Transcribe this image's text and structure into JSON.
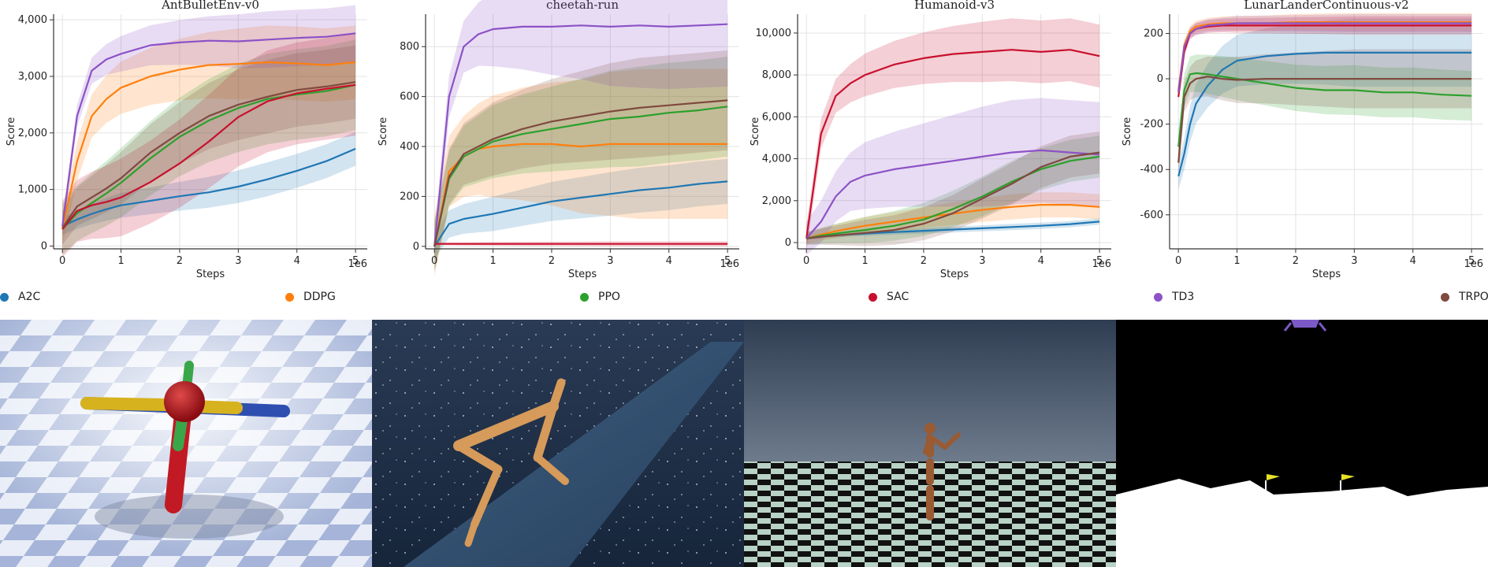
{
  "legend": [
    {
      "name": "A2C",
      "color": "#1f77b4"
    },
    {
      "name": "DDPG",
      "color": "#ff7f0e"
    },
    {
      "name": "PPO",
      "color": "#2ca02c"
    },
    {
      "name": "SAC",
      "color": "#c8102e"
    },
    {
      "name": "TD3",
      "color": "#8c52c6"
    },
    {
      "name": "TRPO",
      "color": "#7f4a3f"
    }
  ],
  "chart_data": [
    {
      "type": "line",
      "title": "AntBulletEnv-v0",
      "xlabel": "Steps",
      "ylabel": "Score",
      "x_multiplier": "1e6",
      "xlim": [
        -0.15,
        5.2
      ],
      "ylim": [
        -50,
        4100
      ],
      "xticks": [
        0,
        1,
        2,
        3,
        4,
        5
      ],
      "xtick_labels": [
        "0",
        "1",
        "2",
        "3",
        "4",
        "5"
      ],
      "yticks": [
        0,
        1000,
        2000,
        3000,
        4000
      ],
      "ytick_labels": [
        "0",
        "1,000",
        "2,000",
        "3,000",
        "4,000"
      ],
      "grid": true,
      "x": [
        0,
        0.25,
        0.5,
        0.75,
        1,
        1.5,
        2,
        2.5,
        3,
        3.5,
        4,
        4.5,
        5
      ],
      "series": [
        {
          "name": "A2C",
          "values": [
            350,
            470,
            570,
            650,
            720,
            800,
            880,
            950,
            1050,
            1180,
            1330,
            1500,
            1720
          ],
          "band": [
            150,
            300
          ]
        },
        {
          "name": "DDPG",
          "values": [
            300,
            1500,
            2300,
            2600,
            2800,
            3000,
            3120,
            3200,
            3220,
            3250,
            3230,
            3200,
            3250
          ],
          "band": [
            300,
            650
          ]
        },
        {
          "name": "PPO",
          "values": [
            300,
            580,
            760,
            930,
            1120,
            1550,
            1930,
            2220,
            2440,
            2600,
            2680,
            2740,
            2850
          ],
          "band": [
            450,
            800
          ]
        },
        {
          "name": "SAC",
          "values": [
            300,
            620,
            720,
            780,
            860,
            1130,
            1460,
            1850,
            2280,
            2560,
            2700,
            2780,
            2850
          ],
          "band": [
            500,
            900
          ]
        },
        {
          "name": "TD3",
          "values": [
            350,
            2300,
            3100,
            3300,
            3400,
            3550,
            3600,
            3630,
            3620,
            3650,
            3680,
            3700,
            3760
          ],
          "band": [
            150,
            500
          ]
        },
        {
          "name": "TRPO",
          "values": [
            320,
            700,
            860,
            1020,
            1200,
            1650,
            2000,
            2300,
            2500,
            2640,
            2760,
            2820,
            2900
          ],
          "band": [
            300,
            650
          ]
        }
      ]
    },
    {
      "type": "line",
      "title": "cheetah-run",
      "xlabel": "Steps",
      "ylabel": "Score",
      "x_multiplier": "1e6",
      "xlim": [
        -0.15,
        5.2
      ],
      "ylim": [
        -10,
        930
      ],
      "xticks": [
        0,
        1,
        2,
        3,
        4,
        5
      ],
      "xtick_labels": [
        "0",
        "1",
        "2",
        "3",
        "4",
        "5"
      ],
      "yticks": [
        0,
        200,
        400,
        600,
        800
      ],
      "ytick_labels": [
        "0",
        "200",
        "400",
        "600",
        "800"
      ],
      "grid": true,
      "x": [
        0,
        0.25,
        0.5,
        0.75,
        1,
        1.5,
        2,
        2.5,
        3,
        3.5,
        4,
        4.5,
        5
      ],
      "series": [
        {
          "name": "A2C",
          "values": [
            0,
            90,
            110,
            120,
            130,
            155,
            180,
            195,
            210,
            225,
            235,
            250,
            260
          ],
          "band": [
            50,
            90
          ]
        },
        {
          "name": "DDPG",
          "values": [
            0,
            300,
            360,
            390,
            400,
            410,
            410,
            400,
            410,
            410,
            410,
            410,
            410
          ],
          "band": [
            120,
            300
          ]
        },
        {
          "name": "PPO",
          "values": [
            0,
            270,
            360,
            390,
            420,
            450,
            470,
            490,
            510,
            520,
            535,
            545,
            560
          ],
          "band": [
            100,
            200
          ]
        },
        {
          "name": "SAC",
          "values": [
            10,
            10,
            10,
            10,
            10,
            10,
            10,
            10,
            10,
            10,
            10,
            10,
            10
          ],
          "band": [
            5,
            10
          ]
        },
        {
          "name": "TD3",
          "values": [
            0,
            600,
            800,
            850,
            870,
            880,
            880,
            885,
            880,
            885,
            880,
            885,
            890
          ],
          "band": [
            60,
            250
          ]
        },
        {
          "name": "TRPO",
          "values": [
            0,
            280,
            370,
            400,
            430,
            470,
            500,
            520,
            540,
            555,
            565,
            575,
            585
          ],
          "band": [
            100,
            200
          ]
        }
      ]
    },
    {
      "type": "line",
      "title": "Humanoid-v3",
      "xlabel": "Steps",
      "ylabel": "Score",
      "x_multiplier": "1e6",
      "xlim": [
        -0.15,
        5.2
      ],
      "ylim": [
        -300,
        10900
      ],
      "xticks": [
        0,
        1,
        2,
        3,
        4,
        5
      ],
      "xtick_labels": [
        "0",
        "1",
        "2",
        "3",
        "4",
        "5"
      ],
      "yticks": [
        0,
        2000,
        4000,
        6000,
        8000,
        10000
      ],
      "ytick_labels": [
        "0",
        "2,000",
        "4,000",
        "6,000",
        "8,000",
        "10,000"
      ],
      "grid": true,
      "x": [
        0,
        0.25,
        0.5,
        0.75,
        1,
        1.5,
        2,
        2.5,
        3,
        3.5,
        4,
        4.5,
        5
      ],
      "series": [
        {
          "name": "A2C",
          "values": [
            200,
            280,
            340,
            390,
            430,
            500,
            560,
            620,
            680,
            740,
            800,
            880,
            1000
          ],
          "band": [
            80,
            150
          ]
        },
        {
          "name": "DDPG",
          "values": [
            200,
            380,
            540,
            680,
            800,
            1000,
            1200,
            1380,
            1560,
            1700,
            1800,
            1800,
            1700
          ],
          "band": [
            250,
            600
          ]
        },
        {
          "name": "PPO",
          "values": [
            200,
            330,
            430,
            520,
            600,
            800,
            1100,
            1600,
            2200,
            2900,
            3500,
            3900,
            4100
          ],
          "band": [
            300,
            1000
          ]
        },
        {
          "name": "SAC",
          "values": [
            200,
            5200,
            7000,
            7600,
            8000,
            8500,
            8800,
            9000,
            9100,
            9200,
            9100,
            9200,
            8900
          ],
          "band": [
            600,
            1500
          ]
        },
        {
          "name": "TD3",
          "values": [
            200,
            1000,
            2200,
            2900,
            3200,
            3500,
            3700,
            3900,
            4100,
            4300,
            4400,
            4300,
            4200
          ],
          "band": [
            800,
            2500
          ]
        },
        {
          "name": "TRPO",
          "values": [
            200,
            280,
            340,
            400,
            460,
            600,
            900,
            1400,
            2100,
            2800,
            3600,
            4100,
            4300
          ],
          "band": [
            300,
            1000
          ]
        }
      ]
    },
    {
      "type": "line",
      "title": "LunarLanderContinuous-v2",
      "xlabel": "Steps",
      "ylabel": "Score",
      "x_multiplier": "1e6",
      "xlim": [
        -0.15,
        5.2
      ],
      "ylim": [
        -750,
        285
      ],
      "xticks": [
        0,
        1,
        2,
        3,
        4,
        5
      ],
      "xtick_labels": [
        "0",
        "1",
        "2",
        "3",
        "4",
        "5"
      ],
      "yticks": [
        -600,
        -400,
        -200,
        0,
        200
      ],
      "ytick_labels": [
        "-600",
        "-400",
        "-200",
        "0",
        "200"
      ],
      "grid": true,
      "x": [
        0,
        0.1,
        0.2,
        0.3,
        0.5,
        0.75,
        1,
        1.5,
        2,
        2.5,
        3,
        3.5,
        4,
        4.5,
        5
      ],
      "series": [
        {
          "name": "A2C",
          "values": [
            -430,
            -330,
            -200,
            -110,
            -30,
            40,
            80,
            100,
            110,
            115,
            115,
            115,
            115,
            115,
            115
          ],
          "band": [
            60,
            150
          ]
        },
        {
          "name": "DDPG",
          "values": [
            -50,
            150,
            210,
            230,
            240,
            245,
            245,
            245,
            250,
            250,
            250,
            250,
            250,
            250,
            250
          ],
          "band": [
            20,
            40
          ]
        },
        {
          "name": "PPO",
          "values": [
            -300,
            -50,
            20,
            25,
            20,
            10,
            0,
            -20,
            -40,
            -50,
            -50,
            -60,
            -60,
            -70,
            -75
          ],
          "band": [
            70,
            110
          ]
        },
        {
          "name": "SAC",
          "values": [
            -80,
            120,
            200,
            220,
            230,
            235,
            235,
            235,
            235,
            235,
            235,
            235,
            235,
            235,
            235
          ],
          "band": [
            20,
            40
          ]
        },
        {
          "name": "TD3",
          "values": [
            -60,
            140,
            200,
            220,
            235,
            240,
            245,
            245,
            245,
            245,
            245,
            245,
            245,
            245,
            245
          ],
          "band": [
            20,
            40
          ]
        },
        {
          "name": "TRPO",
          "values": [
            -370,
            -80,
            -20,
            0,
            10,
            0,
            -5,
            0,
            0,
            0,
            0,
            0,
            0,
            0,
            0
          ],
          "band": [
            60,
            130
          ]
        }
      ]
    }
  ],
  "scenes": [
    {
      "name": "ant"
    },
    {
      "name": "cheetah"
    },
    {
      "name": "humanoid"
    },
    {
      "name": "lunar-lander"
    }
  ]
}
